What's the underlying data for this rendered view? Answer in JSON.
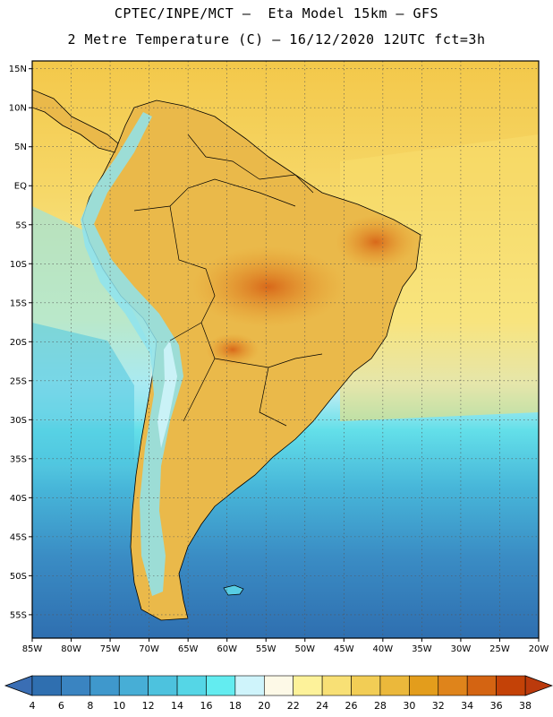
{
  "header": {
    "line1": "CPTEC/INPE/MCT –  Eta Model 15km – GFS",
    "line2": "2 Metre Temperature (C) – 16/12/2020 12UTC fct=3h"
  },
  "map": {
    "lon_range": [
      -85,
      -20
    ],
    "lat_range": [
      -58,
      16
    ],
    "lat_ticks": [
      {
        "value": 15,
        "label": "15N"
      },
      {
        "value": 10,
        "label": "10N"
      },
      {
        "value": 5,
        "label": "5N"
      },
      {
        "value": 0,
        "label": "EQ"
      },
      {
        "value": -5,
        "label": "5S"
      },
      {
        "value": -10,
        "label": "10S"
      },
      {
        "value": -15,
        "label": "15S"
      },
      {
        "value": -20,
        "label": "20S"
      },
      {
        "value": -25,
        "label": "25S"
      },
      {
        "value": -30,
        "label": "30S"
      },
      {
        "value": -35,
        "label": "35S"
      },
      {
        "value": -40,
        "label": "40S"
      },
      {
        "value": -45,
        "label": "45S"
      },
      {
        "value": -50,
        "label": "50S"
      },
      {
        "value": -55,
        "label": "55S"
      }
    ],
    "lon_ticks": [
      {
        "value": -85,
        "label": "85W"
      },
      {
        "value": -80,
        "label": "80W"
      },
      {
        "value": -75,
        "label": "75W"
      },
      {
        "value": -70,
        "label": "70W"
      },
      {
        "value": -65,
        "label": "65W"
      },
      {
        "value": -60,
        "label": "60W"
      },
      {
        "value": -55,
        "label": "55W"
      },
      {
        "value": -50,
        "label": "50W"
      },
      {
        "value": -45,
        "label": "45W"
      },
      {
        "value": -40,
        "label": "40W"
      },
      {
        "value": -35,
        "label": "35W"
      },
      {
        "value": -30,
        "label": "30W"
      },
      {
        "value": -25,
        "label": "25W"
      },
      {
        "value": -20,
        "label": "20W"
      }
    ]
  },
  "colorbar": {
    "labels": [
      "4",
      "6",
      "8",
      "10",
      "12",
      "14",
      "16",
      "18",
      "20",
      "22",
      "24",
      "26",
      "28",
      "30",
      "32",
      "34",
      "36",
      "38"
    ],
    "colors": [
      "#2f6fb0",
      "#3a84c1",
      "#3f98cc",
      "#47aed6",
      "#4dc2de",
      "#55d6e6",
      "#63ecf0",
      "#cff4fb",
      "#fdf9e7",
      "#fdf29a",
      "#f8e075",
      "#f2cd55",
      "#ebb83b",
      "#e39d1c",
      "#df841b",
      "#d46412",
      "#c44207"
    ],
    "below_color": "#3a6eb4",
    "above_color": "#bb3a0c"
  }
}
